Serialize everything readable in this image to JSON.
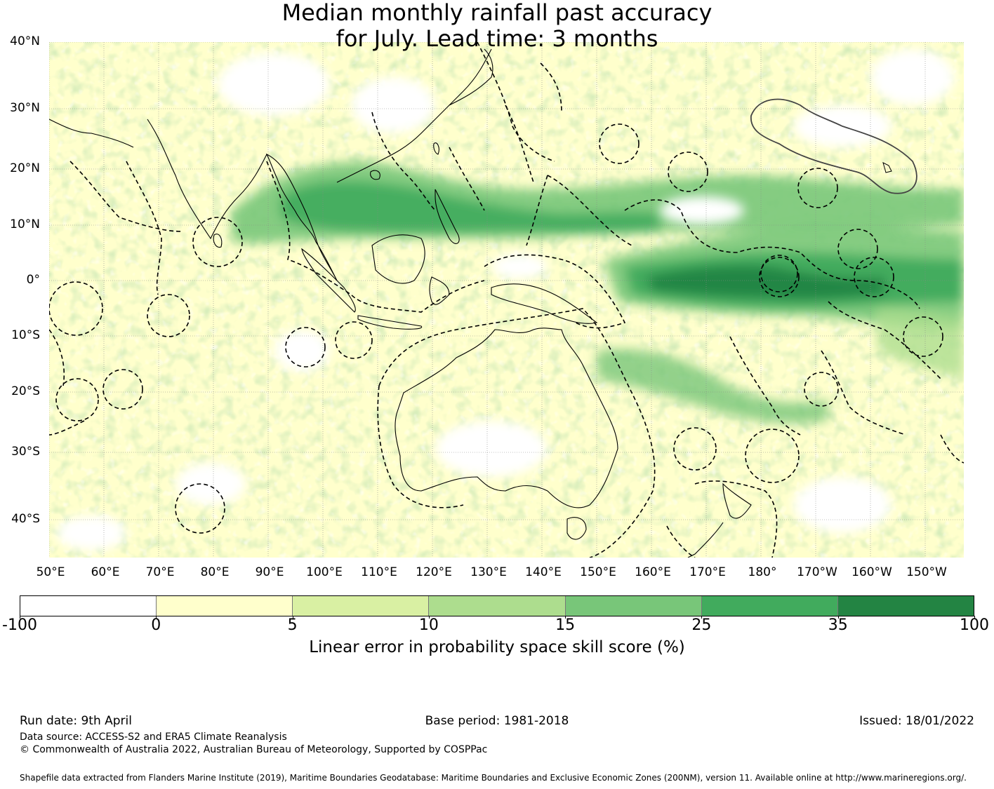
{
  "title": {
    "line1": "Median monthly rainfall past accuracy",
    "line2": "for July. Lead time: 3 months"
  },
  "map": {
    "lat_labels": [
      "40°N",
      "30°N",
      "20°N",
      "10°N",
      "0°",
      "10°S",
      "20°S",
      "30°S",
      "40°S"
    ],
    "lon_labels": [
      "50°E",
      "60°E",
      "70°E",
      "80°E",
      "90°E",
      "100°E",
      "110°E",
      "120°E",
      "130°E",
      "140°E",
      "150°E",
      "160°E",
      "170°E",
      "180°",
      "170°W",
      "160°W",
      "150°W"
    ],
    "colors": {
      "lt0": "#ffffff",
      "c0_5": "#ffffcc",
      "c5_10": "#d9f0a3",
      "c10_15": "#addd8e",
      "c15_25": "#78c679",
      "c25_35": "#41ab5d",
      "c35_100": "#238443",
      "ocean_base": "#ffffcc"
    }
  },
  "colorbar": {
    "ticks": [
      "-100",
      "0",
      "5",
      "10",
      "15",
      "25",
      "35",
      "100"
    ],
    "segments": [
      "#ffffff",
      "#ffffcc",
      "#d9f0a3",
      "#addd8e",
      "#78c679",
      "#41ab5d",
      "#238443"
    ],
    "label": "Linear error in probability space skill score (%)"
  },
  "footer": {
    "run_date": "Run date: 9th April",
    "base_period": "Base period: 1981-2018",
    "issued": "Issued: 18/01/2022",
    "data_source": "Data source: ACCESS-S2 and ERA5 Climate Reanalysis",
    "copyright": "© Commonwealth of Australia 2022, Australian Bureau of Meteorology, Supported by COSPPac",
    "shapefile": "Shapefile data extracted from Flanders Marine Institute (2019), Maritime Boundaries Geodatabase: Maritime Boundaries and Exclusive Economic Zones (200NM), version 11. Available online at http://www.marineregions.org/."
  }
}
